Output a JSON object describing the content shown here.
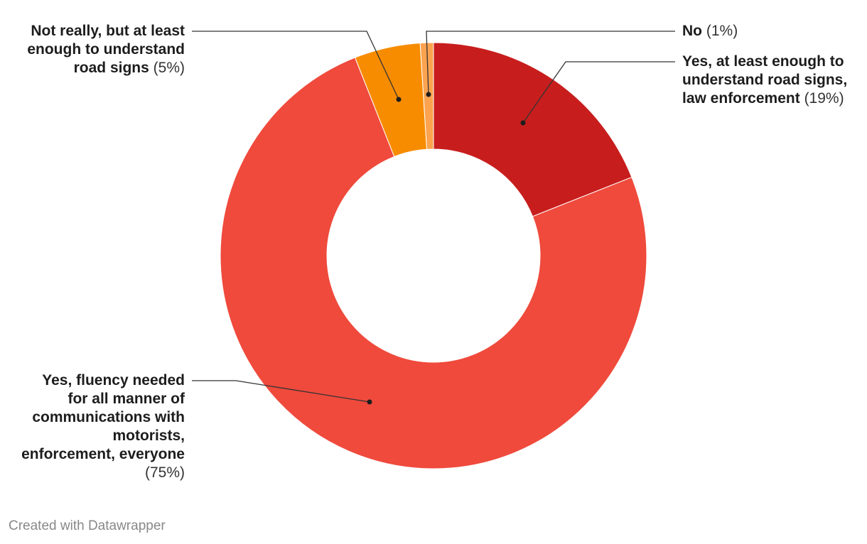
{
  "chart_data": {
    "type": "pie",
    "variant": "donut",
    "categories": [
      "Yes, at least enough to understand road signs, law enforcement",
      "Yes, fluency needed for all manner of communications with motorists, enforcement, everyone",
      "Not really, but at least enough to understand road signs",
      "No"
    ],
    "values": [
      19,
      75,
      5,
      1
    ],
    "pct_labels": [
      "(19%)",
      "(75%)",
      "(5%)",
      "(1%)"
    ],
    "colors": [
      "#c71e1d",
      "#ef4a3c",
      "#f78c00",
      "#fba34f"
    ]
  },
  "labels": {
    "yes_signs": {
      "lines": [
        "Yes, at least enough to",
        "understand road signs,",
        "law enforcement"
      ],
      "pct": "(19%)"
    },
    "yes_fluency": {
      "lines": [
        "Yes, fluency needed",
        "for all manner of",
        "communications with",
        "motorists,",
        "enforcement, everyone"
      ],
      "pct": "(75%)"
    },
    "not_really": {
      "lines": [
        "Not really, but at least",
        "enough to understand",
        "road signs"
      ],
      "pct": "(5%)"
    },
    "no": {
      "lines": [
        "No"
      ],
      "pct": "(1%)"
    }
  },
  "footer": {
    "credit": "Created with Datawrapper"
  }
}
